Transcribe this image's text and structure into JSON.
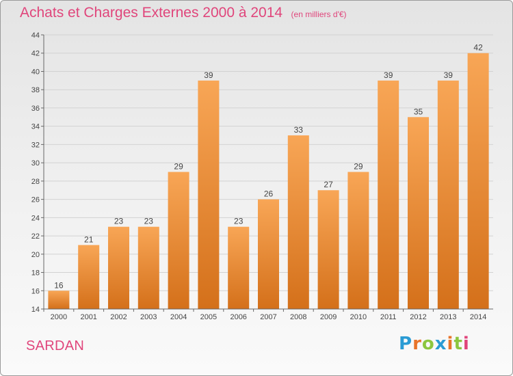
{
  "chart_data": {
    "type": "bar",
    "title": "Achats et Charges Externes 2000 à 2014",
    "subtitle": "(en milliers d'€)",
    "categories": [
      "2000",
      "2001",
      "2002",
      "2003",
      "2004",
      "2005",
      "2006",
      "2007",
      "2008",
      "2009",
      "2010",
      "2011",
      "2012",
      "2013",
      "2014"
    ],
    "values": [
      16,
      21,
      23,
      23,
      29,
      39,
      23,
      26,
      33,
      27,
      29,
      39,
      35,
      39,
      42
    ],
    "ylim": [
      14,
      44
    ],
    "yticks": [
      14,
      16,
      18,
      20,
      22,
      24,
      26,
      28,
      30,
      32,
      34,
      36,
      38,
      40,
      42,
      44
    ],
    "grid": true,
    "legend": "none",
    "bar_color_top": "#f8a656",
    "bar_color_bottom": "#d4701a"
  },
  "location": "SARDAN",
  "brand": {
    "text": "Proxiti",
    "letter_colors": [
      "#2a9bd4",
      "#e8742a",
      "#8cc63f",
      "#2a9bd4",
      "#e8742a",
      "#8cc63f",
      "#e0457b"
    ]
  }
}
